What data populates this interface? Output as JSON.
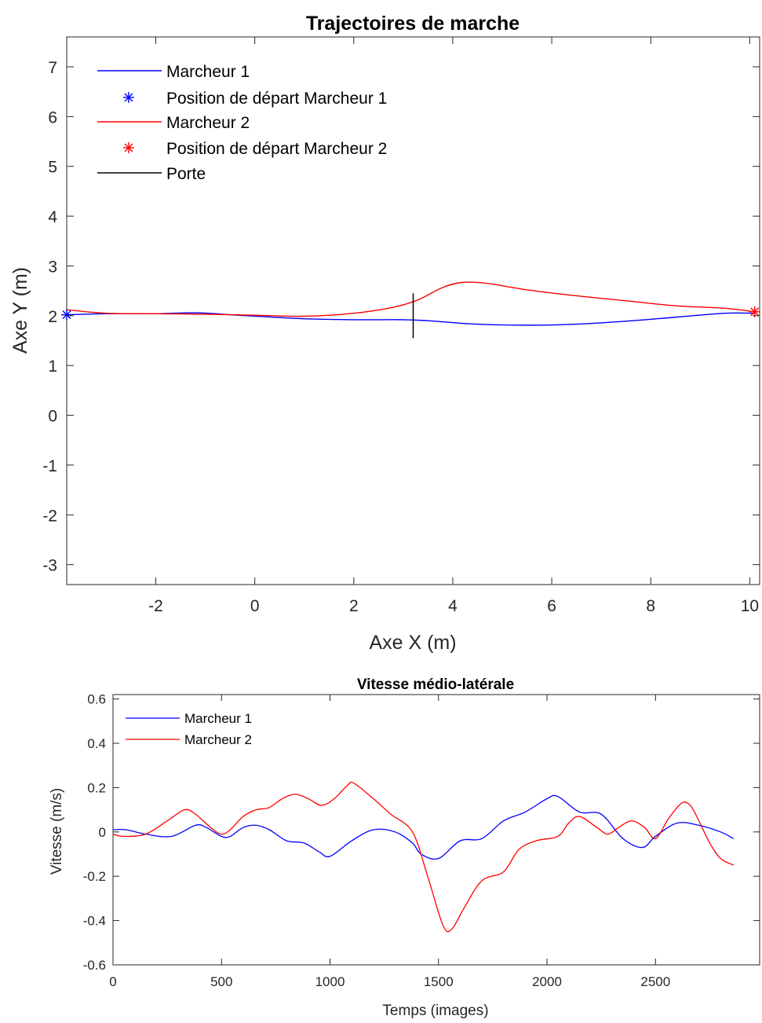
{
  "chart_data": [
    {
      "type": "line",
      "title": "Trajectoires de marche",
      "xlabel": "Axe X (m)",
      "ylabel": "Axe Y (m)",
      "xlim": [
        -3.8,
        10.2
      ],
      "ylim": [
        -3.4,
        7.6
      ],
      "xticks": [
        -2,
        0,
        2,
        4,
        6,
        8,
        10
      ],
      "yticks": [
        -3,
        -2,
        -1,
        0,
        1,
        2,
        3,
        4,
        5,
        6,
        7
      ],
      "grid": false,
      "legend_position": "top-left",
      "series": [
        {
          "name": "Marcheur 1",
          "color": "#0000ff",
          "x": [
            -3.8,
            -3.0,
            -2.0,
            -1.2,
            -0.5,
            0.2,
            1.0,
            2.0,
            3.0,
            3.5,
            4.5,
            5.6,
            6.5,
            7.5,
            8.5,
            9.5,
            10.1
          ],
          "y": [
            2.02,
            2.04,
            2.04,
            2.06,
            2.02,
            1.98,
            1.94,
            1.92,
            1.92,
            1.9,
            1.83,
            1.81,
            1.83,
            1.89,
            1.97,
            2.05,
            2.05
          ]
        },
        {
          "name": "Marcheur 2",
          "color": "#ff0000",
          "x": [
            -3.8,
            -3.0,
            -2.0,
            -1.0,
            0.0,
            1.0,
            2.0,
            2.8,
            3.3,
            3.8,
            4.2,
            4.7,
            5.5,
            6.5,
            7.5,
            8.5,
            9.5,
            10.1
          ],
          "y": [
            2.12,
            2.05,
            2.04,
            2.03,
            2.01,
            1.99,
            2.05,
            2.17,
            2.32,
            2.57,
            2.67,
            2.65,
            2.52,
            2.4,
            2.3,
            2.2,
            2.15,
            2.08
          ]
        }
      ],
      "markers": [
        {
          "name": "Position de départ Marcheur 1",
          "color": "#0000ff",
          "symbol": "asterisk",
          "x": -3.8,
          "y": 2.02
        },
        {
          "name": "Position de départ Marcheur 2",
          "color": "#ff0000",
          "symbol": "asterisk",
          "x": 10.1,
          "y": 2.08
        }
      ],
      "segments": [
        {
          "name": "Porte",
          "color": "#000000",
          "x": [
            3.2,
            3.2
          ],
          "y": [
            1.55,
            2.45
          ]
        }
      ]
    },
    {
      "type": "line",
      "title": "Vitesse médio-latérale",
      "xlabel": "Temps (images)",
      "ylabel": "Vitesse (m/s)",
      "xlim": [
        0,
        2980
      ],
      "ylim": [
        -0.6,
        0.62
      ],
      "xticks": [
        0,
        500,
        1000,
        1500,
        2000,
        2500
      ],
      "yticks": [
        -0.6,
        -0.4,
        -0.2,
        0,
        0.2,
        0.4,
        0.6
      ],
      "grid": false,
      "legend_position": "top-left",
      "series": [
        {
          "name": "Marcheur 1",
          "color": "#0000ff",
          "x": [
            0,
            60,
            150,
            270,
            380,
            430,
            500,
            540,
            600,
            660,
            720,
            800,
            880,
            950,
            1000,
            1100,
            1200,
            1300,
            1380,
            1420,
            1500,
            1600,
            1700,
            1800,
            1900,
            2000,
            2050,
            2150,
            2250,
            2350,
            2440,
            2500,
            2600,
            2700,
            2800,
            2860
          ],
          "y": [
            0.01,
            0.01,
            -0.01,
            -0.02,
            0.03,
            0.02,
            -0.02,
            -0.02,
            0.02,
            0.03,
            0.01,
            -0.04,
            -0.05,
            -0.09,
            -0.11,
            -0.04,
            0.01,
            0.0,
            -0.05,
            -0.1,
            -0.12,
            -0.04,
            -0.03,
            0.05,
            0.09,
            0.15,
            0.16,
            0.09,
            0.08,
            -0.03,
            -0.07,
            -0.02,
            0.04,
            0.03,
            0.0,
            -0.03
          ]
        },
        {
          "name": "Marcheur 2",
          "color": "#ff0000",
          "x": [
            0,
            50,
            150,
            250,
            330,
            380,
            450,
            500,
            540,
            600,
            660,
            720,
            780,
            840,
            900,
            960,
            1020,
            1080,
            1110,
            1200,
            1280,
            1380,
            1450,
            1520,
            1560,
            1620,
            1700,
            1800,
            1870,
            1950,
            2050,
            2100,
            2150,
            2230,
            2280,
            2330,
            2390,
            2450,
            2500,
            2560,
            2620,
            2660,
            2700,
            2750,
            2800,
            2860
          ],
          "y": [
            -0.01,
            -0.02,
            -0.01,
            0.05,
            0.1,
            0.08,
            0.02,
            -0.01,
            0.01,
            0.07,
            0.1,
            0.11,
            0.15,
            0.17,
            0.15,
            0.12,
            0.15,
            0.21,
            0.22,
            0.15,
            0.08,
            0.0,
            -0.2,
            -0.42,
            -0.44,
            -0.34,
            -0.22,
            -0.18,
            -0.08,
            -0.04,
            -0.02,
            0.04,
            0.07,
            0.02,
            -0.01,
            0.02,
            0.05,
            0.02,
            -0.03,
            0.06,
            0.13,
            0.12,
            0.05,
            -0.05,
            -0.12,
            -0.15
          ]
        }
      ]
    }
  ]
}
